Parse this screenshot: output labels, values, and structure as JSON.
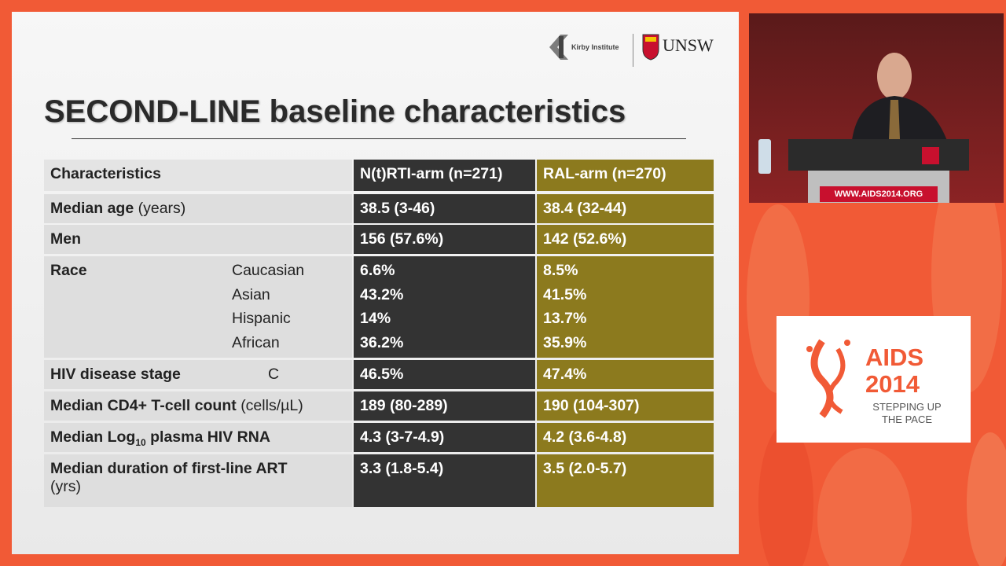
{
  "logos": {
    "kirby": "Kirby Institute",
    "unsw": "UNSW"
  },
  "slide": {
    "title": "SECOND-LINE baseline characteristics"
  },
  "table": {
    "header": [
      "Characteristics",
      "N(t)RTI-arm (n=271)",
      "RAL-arm (n=270)"
    ],
    "rows": [
      {
        "label": "Median age",
        "note": "(years)",
        "nrti": [
          "38.5 (3-46)"
        ],
        "ral": [
          "38.4 (32-44)"
        ]
      },
      {
        "label": "Men",
        "nrti": [
          "156 (57.6%)"
        ],
        "ral": [
          "142 (52.6%)"
        ]
      },
      {
        "label": "Race",
        "sub": [
          "Caucasian",
          "Asian",
          "Hispanic",
          "African"
        ],
        "nrti": [
          "6.6%",
          "43.2%",
          "14%",
          "36.2%"
        ],
        "ral": [
          "8.5%",
          "41.5%",
          "13.7%",
          "35.9%"
        ]
      },
      {
        "label": "HIV disease stage",
        "sub": [
          "C"
        ],
        "nrti": [
          "46.5%"
        ],
        "ral": [
          "47.4%"
        ]
      },
      {
        "label": "Median CD4+ T-cell count",
        "note": "(cells/µL)",
        "nrti": [
          "189 (80-289)"
        ],
        "ral": [
          "190 (104-307)"
        ]
      },
      {
        "label": "Median Log",
        "label_sub": "10",
        "label_end": "plasma HIV RNA",
        "nrti": [
          "4.3 (3-7-4.9)"
        ],
        "ral": [
          "4.2 (3.6-4.8)"
        ]
      },
      {
        "label": "Median duration of first-line ART",
        "note": "(yrs)",
        "nrti": [
          "3.3 (1.8-5.4)"
        ],
        "ral": [
          "3.5 (2.0-5.7)"
        ]
      }
    ]
  },
  "video": {
    "sign": "WWW.AIDS2014.ORG"
  },
  "event_logo": {
    "name": "AIDS",
    "year": "2014",
    "tagline": [
      "STEPPING UP",
      "THE PACE"
    ]
  }
}
